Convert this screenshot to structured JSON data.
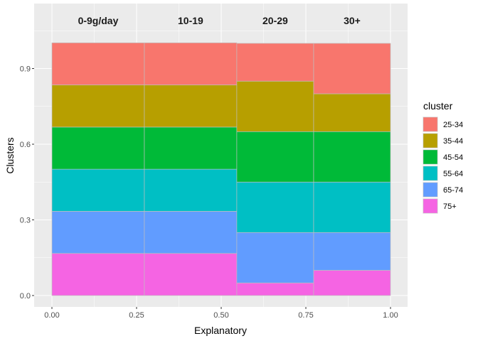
{
  "chart_data": {
    "type": "bar",
    "subtype": "mosaic",
    "xlabel": "Explanatory",
    "ylabel": "Clusters",
    "xlim": [
      0,
      1
    ],
    "ylim": [
      0,
      1
    ],
    "x_ticks": [
      "0.00",
      "0.25",
      "0.50",
      "0.75",
      "1.00"
    ],
    "y_ticks": [
      "0.0",
      "0.3",
      "0.6",
      "0.9"
    ],
    "grid": true,
    "legend_title": "cluster",
    "legend_position": "right",
    "categories": [
      "0-9g/day",
      "10-19",
      "20-29",
      "30+"
    ],
    "category_widths": [
      0.273,
      0.273,
      0.227,
      0.227
    ],
    "series": [
      {
        "name": "75+",
        "color": "#F564E3",
        "values": [
          0.167,
          0.167,
          0.05,
          0.1
        ]
      },
      {
        "name": "65-74",
        "color": "#619CFF",
        "values": [
          0.167,
          0.167,
          0.2,
          0.15
        ]
      },
      {
        "name": "55-64",
        "color": "#00BFC4",
        "values": [
          0.167,
          0.167,
          0.2,
          0.2
        ]
      },
      {
        "name": "45-54",
        "color": "#00BA38",
        "values": [
          0.167,
          0.167,
          0.2,
          0.2
        ]
      },
      {
        "name": "35-44",
        "color": "#B79F00",
        "values": [
          0.167,
          0.167,
          0.2,
          0.15
        ]
      },
      {
        "name": "25-34",
        "color": "#F8766D",
        "values": [
          0.167,
          0.167,
          0.15,
          0.2
        ]
      }
    ],
    "legend_order": [
      "25-34",
      "35-44",
      "45-54",
      "55-64",
      "65-74",
      "75+"
    ]
  }
}
